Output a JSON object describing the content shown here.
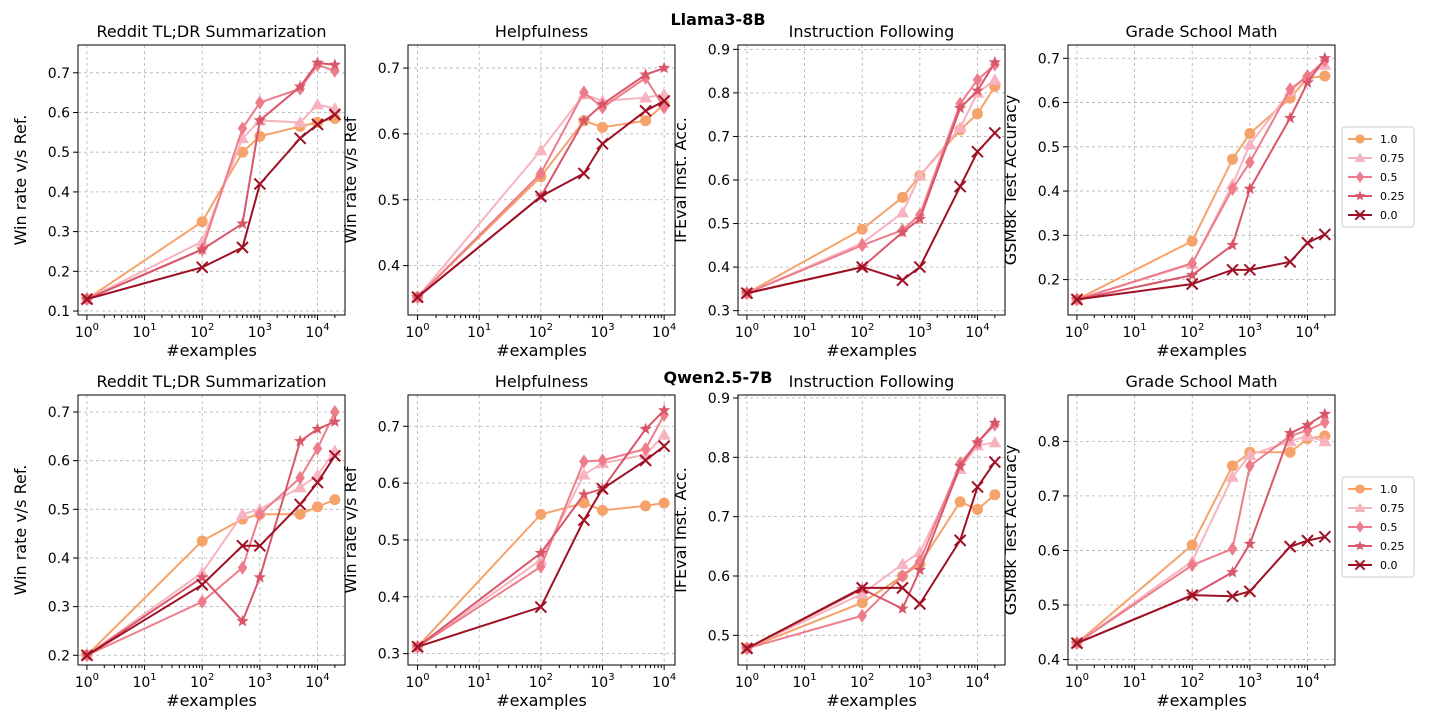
{
  "figure": {
    "row_titles": [
      "Llama3-8B",
      "Qwen2.5-7B"
    ],
    "legend": {
      "entries": [
        {
          "label": "1.0",
          "color": "#f5a36a",
          "marker": "circle"
        },
        {
          "label": "0.75",
          "color": "#f7b4c0",
          "marker": "triangle"
        },
        {
          "label": "0.5",
          "color": "#ee7d8c",
          "marker": "diamond"
        },
        {
          "label": "0.25",
          "color": "#d8566a",
          "marker": "star"
        },
        {
          "label": "0.0",
          "color": "#9e1024",
          "marker": "x"
        }
      ]
    }
  },
  "chart_data": [
    {
      "type": "line",
      "row": "Llama3-8B",
      "title": "Reddit TL;DR Summarization",
      "xlabel": "#examples",
      "ylabel": "Win rate v/s Ref.",
      "xscale": "log",
      "xlim": [
        0.7,
        30000
      ],
      "ylim": [
        0.09,
        0.77
      ],
      "xticks": [
        1,
        10,
        100,
        1000,
        10000
      ],
      "xtick_base": "10",
      "xtick_exps": [
        "0",
        "1",
        "2",
        "3",
        "4"
      ],
      "yticks": [
        0.1,
        0.2,
        0.3,
        0.4,
        0.5,
        0.6,
        0.7
      ],
      "ytick_labels": [
        "0.1",
        "0.2",
        "0.3",
        "0.4",
        "0.5",
        "0.6",
        "0.7"
      ],
      "x": [
        1,
        100,
        500,
        1000,
        5000,
        10000,
        20000
      ],
      "series": [
        {
          "name": "1.0",
          "values": [
            0.13,
            0.325,
            0.5,
            0.54,
            0.565,
            0.575,
            0.585
          ]
        },
        {
          "name": "0.75",
          "values": [
            0.13,
            0.275,
            0.535,
            0.58,
            0.575,
            0.62,
            0.61
          ]
        },
        {
          "name": "0.5",
          "values": [
            0.13,
            0.255,
            0.56,
            0.625,
            0.66,
            0.72,
            0.705
          ]
        },
        {
          "name": "0.25",
          "values": [
            0.13,
            0.255,
            0.32,
            0.58,
            0.665,
            0.725,
            0.72
          ]
        },
        {
          "name": "0.0",
          "values": [
            0.13,
            0.21,
            0.26,
            0.42,
            0.535,
            0.57,
            0.595
          ]
        }
      ]
    },
    {
      "type": "line",
      "row": "Llama3-8B",
      "title": "Helpfulness",
      "xlabel": "#examples",
      "ylabel": "Win rate v/s Ref",
      "xscale": "log",
      "xlim": [
        0.7,
        15000
      ],
      "ylim": [
        0.325,
        0.735
      ],
      "xticks": [
        1,
        10,
        100,
        1000,
        10000
      ],
      "xtick_base": "10",
      "xtick_exps": [
        "0",
        "1",
        "2",
        "3",
        "4"
      ],
      "yticks": [
        0.4,
        0.5,
        0.6,
        0.7
      ],
      "ytick_labels": [
        "0.4",
        "0.5",
        "0.6",
        "0.7"
      ],
      "x": [
        1,
        100,
        500,
        1000,
        5000,
        10000
      ],
      "series": [
        {
          "name": "1.0",
          "values": [
            0.352,
            0.535,
            0.62,
            0.61,
            0.62,
            0.645
          ]
        },
        {
          "name": "0.75",
          "values": [
            0.352,
            0.575,
            0.66,
            0.65,
            0.655,
            0.66
          ]
        },
        {
          "name": "0.5",
          "values": [
            0.352,
            0.54,
            0.663,
            0.64,
            0.685,
            0.64
          ]
        },
        {
          "name": "0.25",
          "values": [
            0.352,
            0.505,
            0.62,
            0.645,
            0.69,
            0.7
          ]
        },
        {
          "name": "0.0",
          "values": [
            0.352,
            0.505,
            0.54,
            0.585,
            0.635,
            0.65
          ]
        }
      ]
    },
    {
      "type": "line",
      "row": "Llama3-8B",
      "title": "Instruction Following",
      "xlabel": "#examples",
      "ylabel": "IFEval Inst. Acc.",
      "xscale": "log",
      "xlim": [
        0.7,
        30000
      ],
      "ylim": [
        0.29,
        0.91
      ],
      "xticks": [
        1,
        10,
        100,
        1000,
        10000
      ],
      "xtick_base": "10",
      "xtick_exps": [
        "0",
        "1",
        "2",
        "3",
        "4"
      ],
      "yticks": [
        0.3,
        0.4,
        0.5,
        0.6,
        0.7,
        0.8,
        0.9
      ],
      "ytick_labels": [
        "0.3",
        "0.4",
        "0.5",
        "0.6",
        "0.7",
        "0.8",
        "0.9"
      ],
      "x": [
        1,
        100,
        500,
        1000,
        5000,
        10000,
        20000
      ],
      "series": [
        {
          "name": "1.0",
          "values": [
            0.34,
            0.487,
            0.56,
            0.61,
            0.715,
            0.752,
            0.815
          ]
        },
        {
          "name": "0.75",
          "values": [
            0.34,
            0.455,
            0.525,
            0.61,
            0.72,
            0.8,
            0.83
          ]
        },
        {
          "name": "0.5",
          "values": [
            0.34,
            0.45,
            0.485,
            0.52,
            0.775,
            0.83,
            0.865
          ]
        },
        {
          "name": "0.25",
          "values": [
            0.34,
            0.4,
            0.48,
            0.51,
            0.765,
            0.805,
            0.87
          ]
        },
        {
          "name": "0.0",
          "values": [
            0.34,
            0.4,
            0.37,
            0.4,
            0.585,
            0.665,
            0.708
          ]
        }
      ]
    },
    {
      "type": "line",
      "row": "Llama3-8B",
      "title": "Grade School Math",
      "xlabel": "#examples",
      "ylabel": "GSM8k Test Accuracy",
      "xscale": "log",
      "xlim": [
        0.7,
        30000
      ],
      "ylim": [
        0.12,
        0.73
      ],
      "xticks": [
        1,
        10,
        100,
        1000,
        10000
      ],
      "xtick_base": "10",
      "xtick_exps": [
        "0",
        "1",
        "2",
        "3",
        "4"
      ],
      "yticks": [
        0.2,
        0.3,
        0.4,
        0.5,
        0.6,
        0.7
      ],
      "ytick_labels": [
        "0.2",
        "0.3",
        "0.4",
        "0.5",
        "0.6",
        "0.7"
      ],
      "x": [
        1,
        100,
        500,
        1000,
        5000,
        10000,
        20000
      ],
      "series": [
        {
          "name": "1.0",
          "values": [
            0.155,
            0.287,
            0.472,
            0.53,
            0.61,
            0.655,
            0.66
          ]
        },
        {
          "name": "0.75",
          "values": [
            0.155,
            0.235,
            0.415,
            0.505,
            0.625,
            0.66,
            0.685
          ]
        },
        {
          "name": "0.5",
          "values": [
            0.155,
            0.237,
            0.405,
            0.465,
            0.63,
            0.66,
            0.695
          ]
        },
        {
          "name": "0.25",
          "values": [
            0.155,
            0.21,
            0.278,
            0.405,
            0.565,
            0.645,
            0.7
          ]
        },
        {
          "name": "0.0",
          "values": [
            0.155,
            0.19,
            0.222,
            0.222,
            0.24,
            0.283,
            0.302
          ]
        }
      ]
    },
    {
      "type": "line",
      "row": "Qwen2.5-7B",
      "title": "Reddit TL;DR Summarization",
      "xlabel": "#examples",
      "ylabel": "Win rate v/s Ref.",
      "xscale": "log",
      "xlim": [
        0.7,
        30000
      ],
      "ylim": [
        0.18,
        0.735
      ],
      "xticks": [
        1,
        10,
        100,
        1000,
        10000
      ],
      "xtick_base": "10",
      "xtick_exps": [
        "0",
        "1",
        "2",
        "3",
        "4"
      ],
      "yticks": [
        0.2,
        0.3,
        0.4,
        0.5,
        0.6,
        0.7
      ],
      "ytick_labels": [
        "0.2",
        "0.3",
        "0.4",
        "0.5",
        "0.6",
        "0.7"
      ],
      "x": [
        1,
        100,
        500,
        1000,
        5000,
        10000,
        20000
      ],
      "series": [
        {
          "name": "1.0",
          "values": [
            0.2,
            0.435,
            0.48,
            0.49,
            0.49,
            0.505,
            0.52
          ]
        },
        {
          "name": "0.75",
          "values": [
            0.2,
            0.37,
            0.49,
            0.5,
            0.545,
            0.57,
            0.62
          ]
        },
        {
          "name": "0.5",
          "values": [
            0.2,
            0.31,
            0.38,
            0.49,
            0.565,
            0.625,
            0.7
          ]
        },
        {
          "name": "0.25",
          "values": [
            0.2,
            0.36,
            0.27,
            0.36,
            0.64,
            0.665,
            0.68
          ]
        },
        {
          "name": "0.0",
          "values": [
            0.2,
            0.345,
            0.425,
            0.425,
            0.51,
            0.555,
            0.61
          ]
        }
      ]
    },
    {
      "type": "line",
      "row": "Qwen2.5-7B",
      "title": "Helpfulness",
      "xlabel": "#examples",
      "ylabel": "Win rate v/s Ref",
      "xscale": "log",
      "xlim": [
        0.7,
        15000
      ],
      "ylim": [
        0.28,
        0.755
      ],
      "xticks": [
        1,
        10,
        100,
        1000,
        10000
      ],
      "xtick_base": "10",
      "xtick_exps": [
        "0",
        "1",
        "2",
        "3",
        "4"
      ],
      "yticks": [
        0.3,
        0.4,
        0.5,
        0.6,
        0.7
      ],
      "ytick_labels": [
        "0.3",
        "0.4",
        "0.5",
        "0.6",
        "0.7"
      ],
      "x": [
        1,
        100,
        500,
        1000,
        5000,
        10000
      ],
      "series": [
        {
          "name": "1.0",
          "values": [
            0.312,
            0.545,
            0.565,
            0.552,
            0.56,
            0.565
          ]
        },
        {
          "name": "0.75",
          "values": [
            0.312,
            0.465,
            0.615,
            0.635,
            0.65,
            0.685
          ]
        },
        {
          "name": "0.5",
          "values": [
            0.312,
            0.453,
            0.638,
            0.64,
            0.66,
            0.72
          ]
        },
        {
          "name": "0.25",
          "values": [
            0.312,
            0.477,
            0.58,
            0.59,
            0.695,
            0.728
          ]
        },
        {
          "name": "0.0",
          "values": [
            0.312,
            0.382,
            0.535,
            0.59,
            0.64,
            0.665
          ]
        }
      ]
    },
    {
      "type": "line",
      "row": "Qwen2.5-7B",
      "title": "Instruction Following",
      "xlabel": "#examples",
      "ylabel": "IFEval Inst. Acc.",
      "xscale": "log",
      "xlim": [
        0.7,
        30000
      ],
      "ylim": [
        0.45,
        0.905
      ],
      "xticks": [
        1,
        10,
        100,
        1000,
        10000
      ],
      "xtick_base": "10",
      "xtick_exps": [
        "0",
        "1",
        "2",
        "3",
        "4"
      ],
      "yticks": [
        0.5,
        0.6,
        0.7,
        0.8,
        0.9
      ],
      "ytick_labels": [
        "0.5",
        "0.6",
        "0.7",
        "0.8",
        "0.9"
      ],
      "x": [
        1,
        100,
        500,
        1000,
        5000,
        10000,
        20000
      ],
      "series": [
        {
          "name": "1.0",
          "values": [
            0.478,
            0.555,
            0.6,
            0.62,
            0.725,
            0.712,
            0.737
          ]
        },
        {
          "name": "0.75",
          "values": [
            0.478,
            0.57,
            0.62,
            0.64,
            0.78,
            0.82,
            0.825
          ]
        },
        {
          "name": "0.5",
          "values": [
            0.478,
            0.533,
            0.6,
            0.625,
            0.79,
            0.825,
            0.855
          ]
        },
        {
          "name": "0.25",
          "values": [
            0.478,
            0.578,
            0.545,
            0.61,
            0.785,
            0.825,
            0.858
          ]
        },
        {
          "name": "0.0",
          "values": [
            0.478,
            0.58,
            0.58,
            0.553,
            0.66,
            0.75,
            0.792
          ]
        }
      ]
    },
    {
      "type": "line",
      "row": "Qwen2.5-7B",
      "title": "Grade School Math",
      "xlabel": "#examples",
      "ylabel": "GSM8k Test Accuracy",
      "xscale": "log",
      "xlim": [
        0.7,
        30000
      ],
      "ylim": [
        0.39,
        0.885
      ],
      "xticks": [
        1,
        10,
        100,
        1000,
        10000
      ],
      "xtick_base": "10",
      "xtick_exps": [
        "0",
        "1",
        "2",
        "3",
        "4"
      ],
      "yticks": [
        0.4,
        0.5,
        0.6,
        0.7,
        0.8
      ],
      "ytick_labels": [
        "0.4",
        "0.5",
        "0.6",
        "0.7",
        "0.8"
      ],
      "x": [
        1,
        100,
        500,
        1000,
        5000,
        10000,
        20000
      ],
      "series": [
        {
          "name": "1.0",
          "values": [
            0.43,
            0.61,
            0.755,
            0.78,
            0.78,
            0.805,
            0.81
          ]
        },
        {
          "name": "0.75",
          "values": [
            0.43,
            0.58,
            0.735,
            0.775,
            0.8,
            0.81,
            0.8
          ]
        },
        {
          "name": "0.5",
          "values": [
            0.43,
            0.573,
            0.603,
            0.755,
            0.81,
            0.82,
            0.835
          ]
        },
        {
          "name": "0.25",
          "values": [
            0.43,
            0.518,
            0.56,
            0.612,
            0.815,
            0.83,
            0.85
          ]
        },
        {
          "name": "0.0",
          "values": [
            0.43,
            0.518,
            0.516,
            0.525,
            0.607,
            0.618,
            0.625
          ]
        }
      ]
    }
  ]
}
